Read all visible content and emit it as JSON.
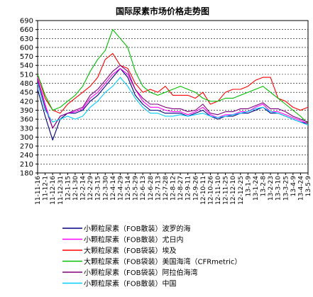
{
  "chart_data": {
    "type": "line",
    "title": "国际尿素市场价格走势图",
    "xlabel": "",
    "ylabel": "",
    "ylim": [
      180,
      690
    ],
    "yticks": [
      180,
      210,
      240,
      270,
      300,
      330,
      360,
      390,
      420,
      450,
      480,
      510,
      540,
      570,
      600,
      630,
      660,
      690
    ],
    "grid": true,
    "legend_position": "bottom",
    "categories": [
      "11-11-16",
      "11-12-1",
      "11-12-16",
      "11-12-31",
      "12-1-15",
      "12-1-30",
      "12-2-14",
      "12-2-29",
      "12-3-15",
      "12-3-30",
      "12-4-14",
      "12-4-29",
      "12-5-14",
      "12-5-29",
      "12-6-13",
      "12-6-28",
      "12-7-13",
      "12-7-28",
      "12-8-12",
      "12-8-27",
      "12-9-11",
      "12-9-26",
      "12-10-11",
      "12-10-26",
      "12-11-10",
      "12-11-25",
      "12-12-10",
      "12-12-25",
      "13-1-9",
      "13-1-24",
      "13-2-8",
      "13-2-23",
      "13-3-10",
      "13-3-25",
      "13-4-9",
      "13-4-24",
      "13-5-9"
    ],
    "series": [
      {
        "name": "小颗粒尿素（FOB散装）波罗的海",
        "color": "#000080",
        "values": [
          460,
          370,
          290,
          360,
          380,
          380,
          390,
          420,
          440,
          470,
          500,
          530,
          500,
          440,
          410,
          390,
          390,
          380,
          380,
          380,
          370,
          380,
          390,
          370,
          360,
          370,
          370,
          380,
          380,
          390,
          400,
          380,
          380,
          370,
          360,
          350,
          345
        ]
      },
      {
        "name": "小颗粒尿素（FOB散装）尤日内",
        "color": "#ff00ff",
        "values": [
          500,
          410,
          330,
          370,
          380,
          385,
          395,
          430,
          450,
          480,
          510,
          530,
          510,
          460,
          420,
          400,
          400,
          390,
          385,
          385,
          375,
          385,
          400,
          375,
          365,
          375,
          375,
          385,
          385,
          400,
          410,
          385,
          385,
          375,
          365,
          355,
          345
        ]
      },
      {
        "name": "大颗粒尿素（FOB袋装）埃及",
        "color": "#ff0000",
        "values": [
          510,
          430,
          390,
          380,
          410,
          430,
          450,
          470,
          500,
          560,
          580,
          540,
          530,
          480,
          450,
          460,
          450,
          470,
          440,
          440,
          440,
          430,
          450,
          410,
          420,
          450,
          460,
          460,
          470,
          490,
          500,
          500,
          430,
          420,
          400,
          390,
          400
        ]
      },
      {
        "name": "大颗粒尿素（FOB袋装）美国海湾（CFRmetric）",
        "color": "#00c000",
        "values": [
          510,
          440,
          390,
          400,
          420,
          440,
          470,
          520,
          560,
          590,
          660,
          630,
          600,
          520,
          470,
          450,
          440,
          450,
          460,
          470,
          460,
          450,
          430,
          420,
          420,
          430,
          430,
          440,
          450,
          460,
          470,
          450,
          430,
          410,
          390,
          370,
          345
        ]
      },
      {
        "name": "小颗粒尿素（FOB袋装）阿拉伯海湾",
        "color": "#800080",
        "values": [
          490,
          400,
          330,
          370,
          380,
          390,
          400,
          440,
          460,
          490,
          520,
          540,
          520,
          460,
          430,
          410,
          410,
          400,
          395,
          395,
          385,
          390,
          410,
          380,
          375,
          385,
          385,
          395,
          395,
          405,
          415,
          395,
          395,
          385,
          370,
          360,
          350
        ]
      },
      {
        "name": "小颗粒尿素（FOB散装）中国",
        "color": "#00ccff",
        "values": [
          480,
          390,
          350,
          360,
          370,
          360,
          370,
          400,
          420,
          450,
          470,
          500,
          470,
          430,
          400,
          380,
          380,
          370,
          370,
          375,
          370,
          375,
          380,
          370,
          365,
          370,
          375,
          380,
          385,
          395,
          400,
          385,
          380,
          370,
          360,
          350,
          340
        ]
      }
    ]
  }
}
